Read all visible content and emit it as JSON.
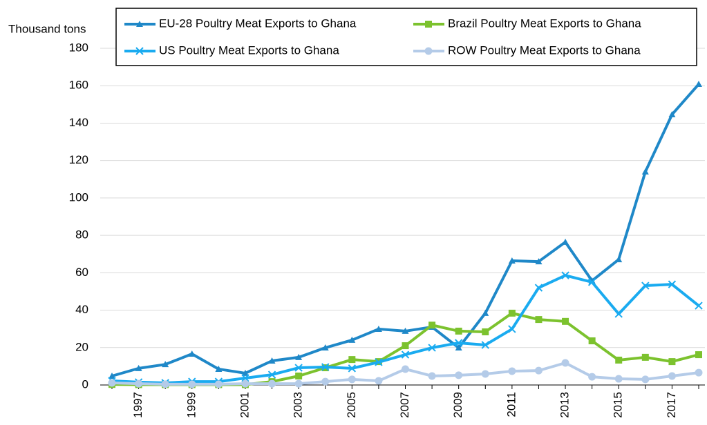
{
  "chart_data": {
    "type": "line",
    "y_label": "Thousand tons",
    "categories": [
      null,
      "1997",
      null,
      "1999",
      null,
      "2001",
      null,
      "2003",
      null,
      "2005",
      null,
      "2007",
      null,
      "2009",
      null,
      "2011",
      null,
      "2013",
      null,
      "2015",
      null,
      "2017",
      null
    ],
    "series": [
      {
        "name": "EU-28 Poultry Meat Exports to Ghana",
        "color": "#1f88c8",
        "marker": "triangle",
        "values": [
          4.8,
          8.9,
          11,
          16.6,
          8.5,
          6.3,
          12.9,
          14.8,
          19.9,
          24,
          29.9,
          28.8,
          31,
          19.9,
          38.4,
          66.4,
          66,
          76.4,
          55.7,
          67.1,
          114,
          144.6,
          160.8
        ]
      },
      {
        "name": "Brazil Poultry Meat Exports to Ghana",
        "color": "#7cc22e",
        "marker": "square",
        "values": [
          0.3,
          0.2,
          0.2,
          0.2,
          0.2,
          0.2,
          1.8,
          4.8,
          9.2,
          13.6,
          12.5,
          21,
          32,
          28.8,
          28.4,
          38.4,
          35,
          34,
          23.6,
          13.3,
          14.8,
          12.5,
          16.2
        ]
      },
      {
        "name": "US Poultry Meat Exports to Ghana",
        "color": "#1aabf0",
        "marker": "x",
        "values": [
          2.2,
          1.5,
          1.1,
          1.8,
          1.8,
          3.7,
          5.5,
          9.2,
          9.6,
          8.9,
          12.2,
          16.2,
          19.9,
          22.5,
          21.4,
          29.9,
          52,
          58.6,
          55,
          38,
          53.1,
          53.8,
          42.4
        ]
      },
      {
        "name": "ROW Poultry Meat Exports to Ghana",
        "color": "#b4cbe8",
        "marker": "circle",
        "values": [
          1.1,
          0.7,
          0.4,
          0.4,
          0.4,
          0.7,
          0.7,
          0.7,
          1.8,
          3,
          2.2,
          8.5,
          4.8,
          5.2,
          5.9,
          7.4,
          7.7,
          11.8,
          4.4,
          3.3,
          3,
          4.8,
          6.6
        ]
      }
    ],
    "ylim": [
      0,
      180
    ],
    "yticks": [
      0,
      20,
      40,
      60,
      80,
      100,
      120,
      140,
      160,
      180
    ],
    "grid": true,
    "legend": "top"
  }
}
